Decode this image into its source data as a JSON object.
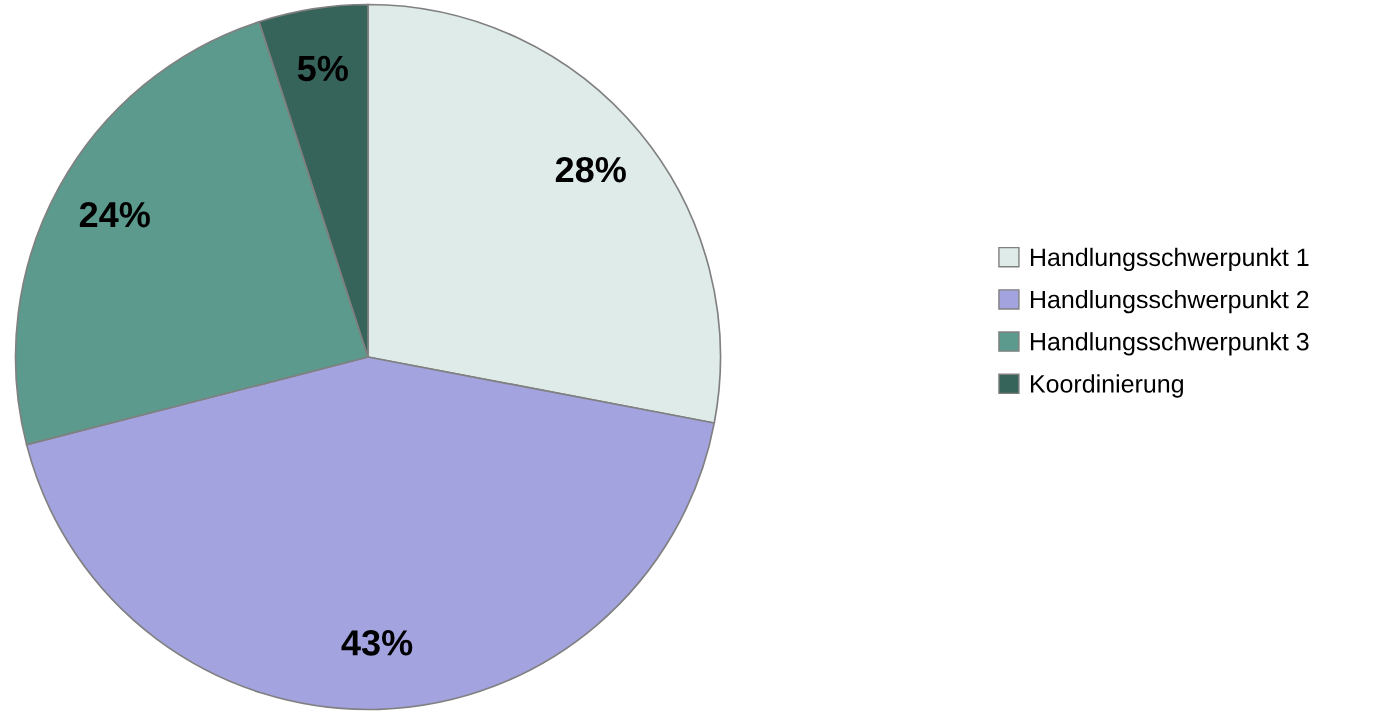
{
  "chart_data": {
    "type": "pie",
    "categories": [
      "Handlungsschwerpunkt 1",
      "Handlungsschwerpunkt 2",
      "Handlungsschwerpunkt 3",
      "Koordinierung"
    ],
    "values": [
      28,
      43,
      24,
      5
    ],
    "colors": [
      "#deebe8",
      "#a3a3e0",
      "#5b9a8d",
      "#36635a"
    ],
    "value_labels": [
      "28%",
      "43%",
      "24%",
      "5%"
    ],
    "legend": "right"
  }
}
